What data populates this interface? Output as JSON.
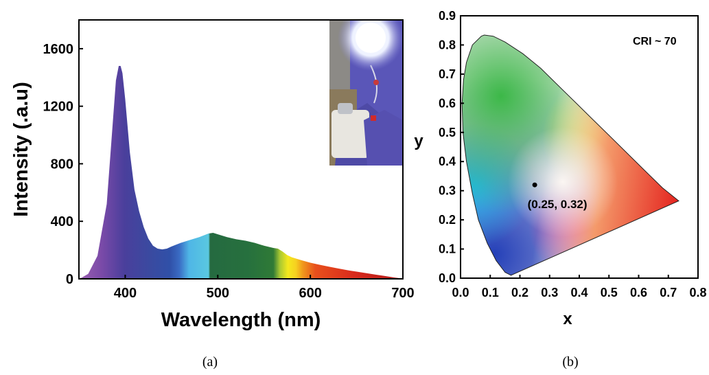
{
  "chart_data": [
    {
      "type": "area",
      "panel_label": "(a)",
      "xlabel": "Wavelength (nm)",
      "ylabel": "Intensity (.a.u)",
      "xlim": [
        350,
        700
      ],
      "ylim": [
        0,
        1800
      ],
      "x_ticks": [
        400,
        500,
        600,
        700
      ],
      "y_ticks": [
        0,
        400,
        800,
        1200,
        1600
      ],
      "grid": false,
      "fill": "visible spectrum colors",
      "inset": "photo of glowing light source",
      "series": [
        {
          "x": [
            352,
            360,
            370,
            380,
            385,
            390,
            393,
            395,
            397,
            400,
            405,
            410,
            415,
            420,
            425,
            430,
            435,
            440,
            445,
            450,
            460,
            470,
            480,
            490,
            495,
            500,
            510,
            520,
            530,
            540,
            550,
            560,
            565,
            570,
            575,
            580,
            590,
            600,
            610,
            620,
            630,
            640,
            650,
            660,
            670,
            680,
            690,
            698
          ],
          "y": [
            5,
            35,
            160,
            520,
            950,
            1380,
            1480,
            1480,
            1430,
            1250,
            880,
            620,
            470,
            360,
            280,
            230,
            210,
            205,
            210,
            225,
            250,
            270,
            290,
            315,
            320,
            310,
            290,
            275,
            265,
            250,
            230,
            215,
            210,
            190,
            165,
            150,
            130,
            112,
            98,
            85,
            72,
            60,
            50,
            40,
            30,
            20,
            10,
            3
          ]
        }
      ]
    },
    {
      "type": "scatter",
      "panel_label": "(b)",
      "xlabel": "x",
      "ylabel": "y",
      "xlim": [
        0.0,
        0.8
      ],
      "ylim": [
        0.0,
        0.9
      ],
      "x_ticks": [
        "0.0",
        "0.1",
        "0.2",
        "0.3",
        "0.4",
        "0.5",
        "0.6",
        "0.7",
        "0.8"
      ],
      "y_ticks": [
        "0.0",
        "0.1",
        "0.2",
        "0.3",
        "0.4",
        "0.5",
        "0.6",
        "0.7",
        "0.8",
        "0.9"
      ],
      "grid": false,
      "background": "CIE 1931 chromaticity diagram",
      "annotation": "CRI ~ 70",
      "points": [
        {
          "x": 0.25,
          "y": 0.32,
          "label": "(0.25, 0.32)"
        }
      ],
      "locus": [
        [
          0.17,
          0.01
        ],
        [
          0.15,
          0.02
        ],
        [
          0.12,
          0.06
        ],
        [
          0.09,
          0.12
        ],
        [
          0.06,
          0.2
        ],
        [
          0.04,
          0.29
        ],
        [
          0.02,
          0.4
        ],
        [
          0.008,
          0.5
        ],
        [
          0.005,
          0.6
        ],
        [
          0.01,
          0.68
        ],
        [
          0.02,
          0.74
        ],
        [
          0.04,
          0.8
        ],
        [
          0.07,
          0.83
        ],
        [
          0.08,
          0.834
        ],
        [
          0.11,
          0.83
        ],
        [
          0.15,
          0.81
        ],
        [
          0.21,
          0.77
        ],
        [
          0.27,
          0.72
        ],
        [
          0.33,
          0.66
        ],
        [
          0.38,
          0.61
        ],
        [
          0.44,
          0.55
        ],
        [
          0.5,
          0.49
        ],
        [
          0.56,
          0.43
        ],
        [
          0.62,
          0.37
        ],
        [
          0.68,
          0.31
        ],
        [
          0.735,
          0.265
        ],
        [
          0.17,
          0.01
        ]
      ]
    }
  ],
  "captions": [
    "(a)",
    "(b)"
  ]
}
